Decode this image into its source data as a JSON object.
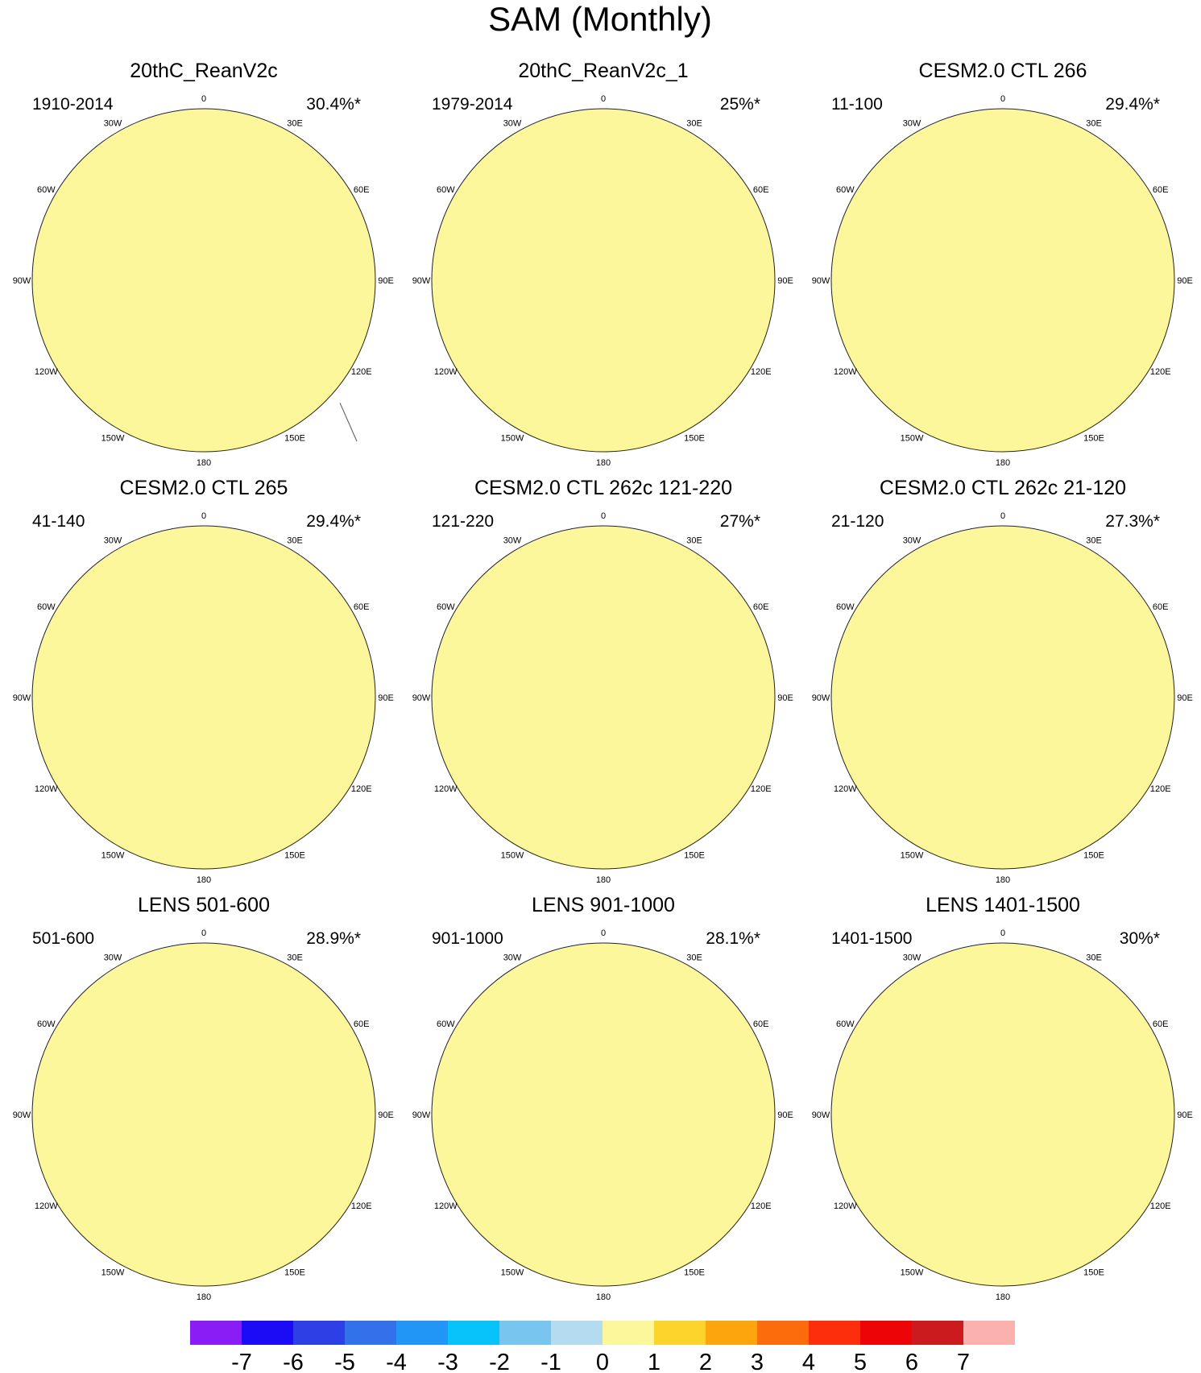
{
  "figure": {
    "title": "SAM (Monthly)",
    "panels": [
      {
        "title": "20thC_ReanV2c",
        "period": "1910-2014",
        "variance": "30.4%*",
        "style": "rean1"
      },
      {
        "title": "20thC_ReanV2c_1",
        "period": "1979-2014",
        "variance": "25%*",
        "style": "rean2"
      },
      {
        "title": "CESM2.0 CTL 266",
        "period": "11-100",
        "variance": "29.4%*",
        "style": "ring"
      },
      {
        "title": "CESM2.0 CTL 265",
        "period": "41-140",
        "variance": "29.4%*",
        "style": "ring_strong"
      },
      {
        "title": "CESM2.0 CTL 262c 121-220",
        "period": "121-220",
        "variance": "27%*",
        "style": "ring"
      },
      {
        "title": "CESM2.0 CTL 262c 21-120",
        "period": "21-120",
        "variance": "27.3%*",
        "style": "ring"
      },
      {
        "title": "LENS 501-600",
        "period": "501-600",
        "variance": "28.9%*",
        "style": "lens"
      },
      {
        "title": "LENS 901-1000",
        "period": "901-1000",
        "variance": "28.1%*",
        "style": "lens"
      },
      {
        "title": "LENS 1401-1500",
        "period": "1401-1500",
        "variance": "30%*",
        "style": "lens"
      }
    ],
    "longitude_labels": [
      "0",
      "30E",
      "60E",
      "90E",
      "120E",
      "150E",
      "180",
      "150W",
      "120W",
      "90W",
      "60W",
      "30W"
    ],
    "colorbar": {
      "labels": [
        "-7",
        "-6",
        "-5",
        "-4",
        "-3",
        "-2",
        "-1",
        "0",
        "1",
        "2",
        "3",
        "4",
        "5",
        "6",
        "7"
      ],
      "colors": [
        "#8a1df5",
        "#1c0bf5",
        "#2c40e6",
        "#3371ea",
        "#2196f7",
        "#07c3f9",
        "#78c6ef",
        "#b4dcf1",
        "#fdf79c",
        "#fdd42c",
        "#fda50d",
        "#fd6c0c",
        "#fd2e0b",
        "#ed0407",
        "#cc1b1e",
        "#fbb1ae"
      ]
    }
  }
}
